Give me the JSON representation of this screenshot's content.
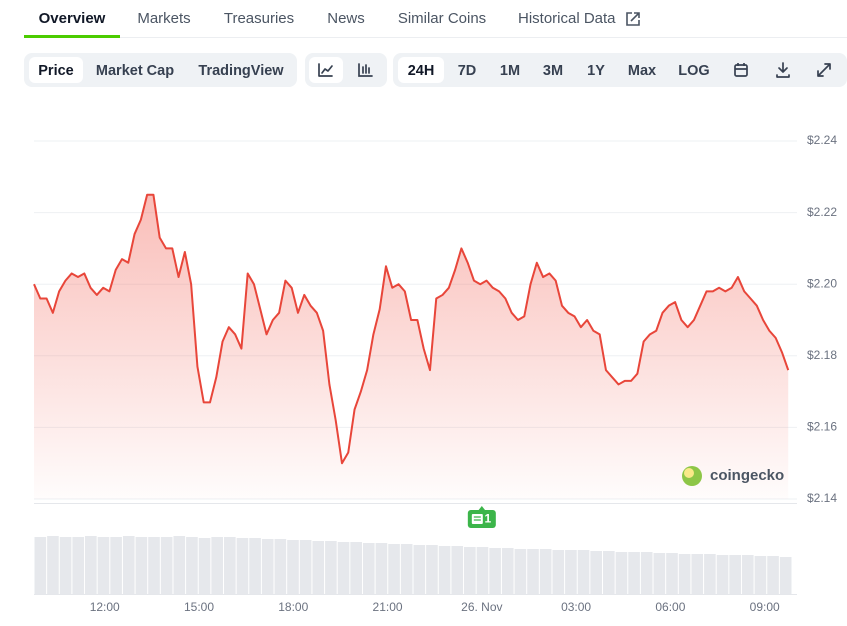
{
  "tabs": [
    "Overview",
    "Markets",
    "Treasuries",
    "News",
    "Similar Coins",
    "Historical Data"
  ],
  "toolbar": {
    "views": [
      "Price",
      "Market Cap",
      "TradingView"
    ],
    "ranges": [
      "24H",
      "7D",
      "1M",
      "3M",
      "1Y",
      "Max",
      "LOG"
    ]
  },
  "watermark": "coingecko",
  "chart_data": {
    "type": "line",
    "color": "#e8463a",
    "x": [
      9.75,
      9.95,
      10.15,
      10.35,
      10.55,
      10.75,
      10.95,
      11.15,
      11.35,
      11.55,
      11.75,
      11.95,
      12.15,
      12.35,
      12.55,
      12.75,
      12.95,
      13.15,
      13.35,
      13.55,
      13.75,
      13.95,
      14.15,
      14.35,
      14.55,
      14.75,
      14.95,
      15.15,
      15.35,
      15.55,
      15.75,
      15.95,
      16.15,
      16.35,
      16.55,
      16.75,
      16.95,
      17.15,
      17.35,
      17.55,
      17.75,
      17.95,
      18.15,
      18.35,
      18.55,
      18.75,
      18.95,
      19.15,
      19.35,
      19.55,
      19.75,
      19.95,
      20.15,
      20.35,
      20.55,
      20.75,
      20.95,
      21.15,
      21.35,
      21.55,
      21.75,
      21.95,
      22.15,
      22.35,
      22.55,
      22.75,
      22.95,
      23.15,
      23.35,
      23.55,
      23.75,
      23.95,
      24.15,
      24.35,
      24.55,
      24.75,
      24.95,
      25.15,
      25.35,
      25.55,
      25.75,
      25.95,
      26.15,
      26.35,
      26.55,
      26.75,
      26.95,
      27.15,
      27.35,
      27.55,
      27.75,
      27.95,
      28.15,
      28.35,
      28.55,
      28.75,
      28.95,
      29.15,
      29.35,
      29.55,
      29.75,
      29.95,
      30.15,
      30.35,
      30.55,
      30.75,
      30.95,
      31.15,
      31.35,
      31.55,
      31.75,
      31.95,
      32.15,
      32.35,
      32.55,
      32.75,
      32.95,
      33.15,
      33.35,
      33.55,
      33.75
    ],
    "values": [
      2.2,
      2.196,
      2.196,
      2.192,
      2.198,
      2.201,
      2.203,
      2.202,
      2.203,
      2.199,
      2.197,
      2.199,
      2.198,
      2.204,
      2.207,
      2.206,
      2.214,
      2.218,
      2.225,
      2.225,
      2.213,
      2.21,
      2.21,
      2.202,
      2.209,
      2.2,
      2.177,
      2.167,
      2.167,
      2.174,
      2.184,
      2.188,
      2.186,
      2.182,
      2.203,
      2.2,
      2.193,
      2.186,
      2.19,
      2.192,
      2.201,
      2.199,
      2.192,
      2.197,
      2.194,
      2.192,
      2.187,
      2.172,
      2.162,
      2.15,
      2.153,
      2.165,
      2.17,
      2.176,
      2.186,
      2.193,
      2.205,
      2.199,
      2.2,
      2.198,
      2.19,
      2.19,
      2.182,
      2.176,
      2.196,
      2.197,
      2.199,
      2.204,
      2.21,
      2.206,
      2.201,
      2.2,
      2.201,
      2.199,
      2.198,
      2.196,
      2.192,
      2.19,
      2.191,
      2.2,
      2.206,
      2.202,
      2.203,
      2.201,
      2.194,
      2.192,
      2.191,
      2.188,
      2.19,
      2.187,
      2.186,
      2.176,
      2.174,
      2.172,
      2.173,
      2.173,
      2.175,
      2.184,
      2.186,
      2.187,
      2.192,
      2.194,
      2.195,
      2.19,
      2.188,
      2.19,
      2.194,
      2.198,
      2.198,
      2.199,
      2.198,
      2.199,
      2.202,
      2.198,
      2.196,
      2.194,
      2.19,
      2.187,
      2.185,
      2.181,
      2.176
    ],
    "xlim": [
      9.75,
      33.87
    ],
    "xticks": [
      {
        "value": 12,
        "label": "12:00"
      },
      {
        "value": 15,
        "label": "15:00"
      },
      {
        "value": 18,
        "label": "18:00"
      },
      {
        "value": 21,
        "label": "21:00"
      },
      {
        "value": 24,
        "label": "26. Nov"
      },
      {
        "value": 27,
        "label": "03:00"
      },
      {
        "value": 30,
        "label": "06:00"
      },
      {
        "value": 33,
        "label": "09:00"
      }
    ],
    "ylim": [
      2.14,
      2.24
    ],
    "yticks": [
      {
        "value": 2.14,
        "label": "$2.14"
      },
      {
        "value": 2.16,
        "label": "$2.16"
      },
      {
        "value": 2.18,
        "label": "$2.18"
      },
      {
        "value": 2.2,
        "label": "$2.20"
      },
      {
        "value": 2.22,
        "label": "$2.22"
      },
      {
        "value": 2.24,
        "label": "$2.24"
      }
    ],
    "grid": true,
    "annotations": [
      {
        "x": 24,
        "label": "1"
      }
    ],
    "volume": {
      "color": "#e6e8ec",
      "ylim": [
        0,
        60
      ],
      "values": [
        57,
        58,
        57,
        57,
        58,
        57,
        57,
        58,
        57,
        57,
        57,
        58,
        57,
        56,
        57,
        57,
        56,
        56,
        55,
        55,
        54,
        54,
        53,
        53,
        52,
        52,
        51,
        51,
        50,
        50,
        49,
        49,
        48,
        48,
        47,
        47,
        46,
        46,
        45,
        45,
        45,
        44,
        44,
        44,
        43,
        43,
        42,
        42,
        42,
        41,
        41,
        40,
        40,
        40,
        39,
        39,
        39,
        38,
        38,
        37
      ]
    }
  }
}
